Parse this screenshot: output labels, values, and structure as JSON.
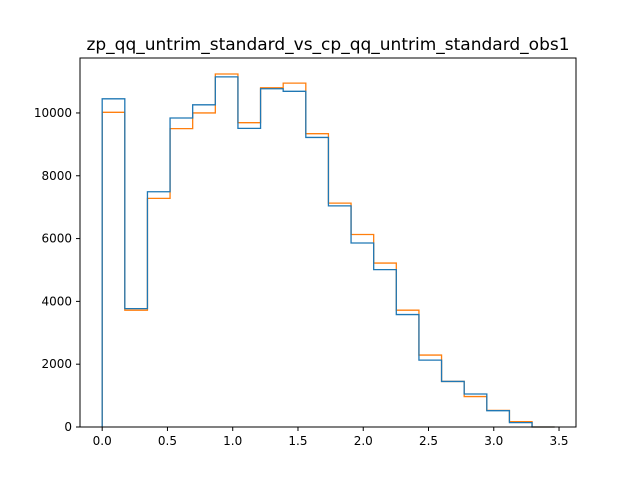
{
  "chart_data": {
    "type": "histogram-step",
    "title": "zp_qq_untrim_standard_vs_cp_qq_untrim_standard_obs1",
    "xlabel": "",
    "ylabel": "",
    "xlim": [
      -0.17,
      3.63
    ],
    "ylim": [
      0,
      11750
    ],
    "xticks": [
      0.0,
      0.5,
      1.0,
      1.5,
      2.0,
      2.5,
      3.0,
      3.5
    ],
    "xtick_labels": [
      "0.0",
      "0.5",
      "1.0",
      "1.5",
      "2.0",
      "2.5",
      "3.0",
      "3.5"
    ],
    "yticks": [
      0,
      2000,
      4000,
      6000,
      8000,
      10000
    ],
    "ytick_labels": [
      "0",
      "2000",
      "4000",
      "6000",
      "8000",
      "10000"
    ],
    "grid": false,
    "legend": "none",
    "bin_edges": [
      0.0,
      0.1733,
      0.3467,
      0.52,
      0.6933,
      0.8667,
      1.04,
      1.2133,
      1.3867,
      1.56,
      1.7333,
      1.9067,
      2.08,
      2.2533,
      2.4267,
      2.6,
      2.7733,
      2.9467,
      3.12,
      3.2933,
      3.4667
    ],
    "series": [
      {
        "color": "#1f77b4",
        "values": [
          10450,
          3770,
          7490,
          9840,
          10260,
          11150,
          9510,
          10770,
          10690,
          9220,
          7040,
          5860,
          5010,
          3580,
          2130,
          1450,
          1050,
          520,
          140,
          0
        ]
      },
      {
        "color": "#ff7f0e",
        "values": [
          10020,
          3720,
          7280,
          9500,
          10000,
          11240,
          9690,
          10800,
          10950,
          9340,
          7130,
          6130,
          5220,
          3720,
          2290,
          1450,
          970,
          530,
          170,
          0
        ]
      }
    ]
  }
}
